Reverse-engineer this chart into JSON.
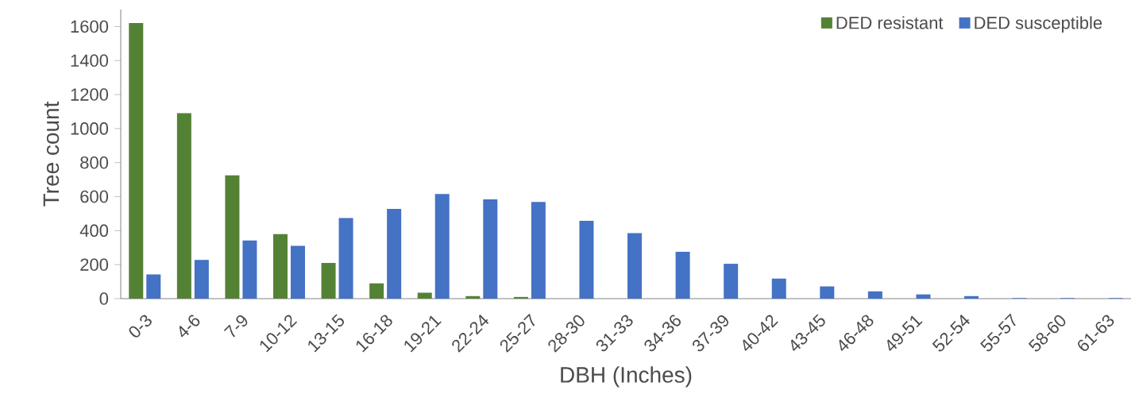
{
  "chart_data": {
    "type": "bar",
    "xlabel": "DBH (Inches)",
    "ylabel": "Tree count",
    "categories": [
      "0-3",
      "4-6",
      "7-9",
      "10-12",
      "13-15",
      "16-18",
      "19-21",
      "22-24",
      "25-27",
      "28-30",
      "31-33",
      "34-36",
      "37-39",
      "40-42",
      "43-45",
      "46-48",
      "49-51",
      "52-54",
      "55-57",
      "58-60",
      "61-63"
    ],
    "series": [
      {
        "name": "DED resistant",
        "color": "#548235",
        "values": [
          1620,
          1090,
          725,
          380,
          210,
          90,
          35,
          15,
          10,
          null,
          null,
          null,
          null,
          0,
          0,
          0,
          0,
          0,
          0,
          0,
          0
        ]
      },
      {
        "name": "DED susceptible",
        "color": "#4472c4",
        "values": [
          143,
          228,
          342,
          311,
          474,
          528,
          615,
          584,
          569,
          458,
          385,
          275,
          205,
          118,
          72,
          43,
          25,
          15,
          3,
          3,
          3
        ]
      }
    ],
    "ylim": [
      0,
      1700
    ],
    "yticks": [
      0,
      200,
      400,
      600,
      800,
      1000,
      1200,
      1400,
      1600
    ],
    "grid": false,
    "legend": "top right"
  }
}
